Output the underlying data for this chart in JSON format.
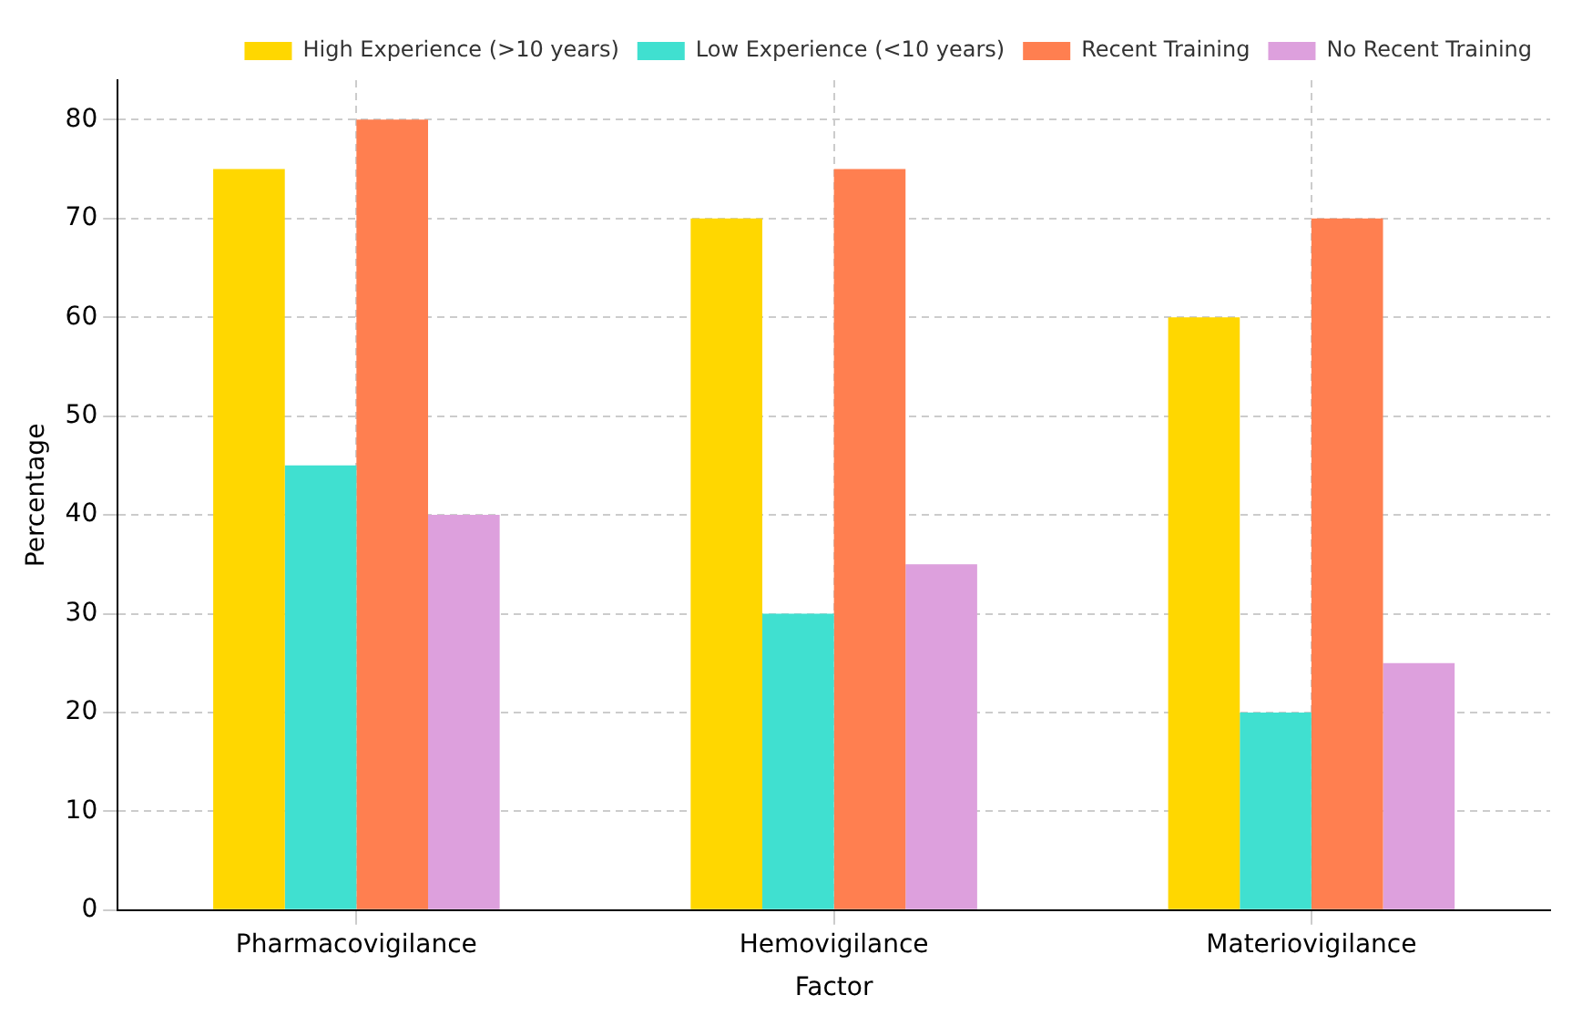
{
  "chart_data": {
    "type": "bar",
    "xlabel": "Factor",
    "ylabel": "Percentage",
    "categories": [
      "Pharmacovigilance",
      "Hemovigilance",
      "Materiovigilance"
    ],
    "series": [
      {
        "name": "High Experience (>10 years)",
        "color": "#ffd700",
        "values": [
          75,
          70,
          60
        ]
      },
      {
        "name": "Low Experience (<10 years)",
        "color": "#40e0d0",
        "values": [
          45,
          30,
          20
        ]
      },
      {
        "name": "Recent Training",
        "color": "#ff7f50",
        "values": [
          80,
          75,
          70
        ]
      },
      {
        "name": "No Recent Training",
        "color": "#dda0dd",
        "values": [
          40,
          35,
          25
        ]
      }
    ],
    "ylim": [
      0,
      84
    ],
    "yticks": [
      0,
      10,
      20,
      30,
      40,
      50,
      60,
      70,
      80
    ],
    "grid": true,
    "legend": "top right"
  }
}
